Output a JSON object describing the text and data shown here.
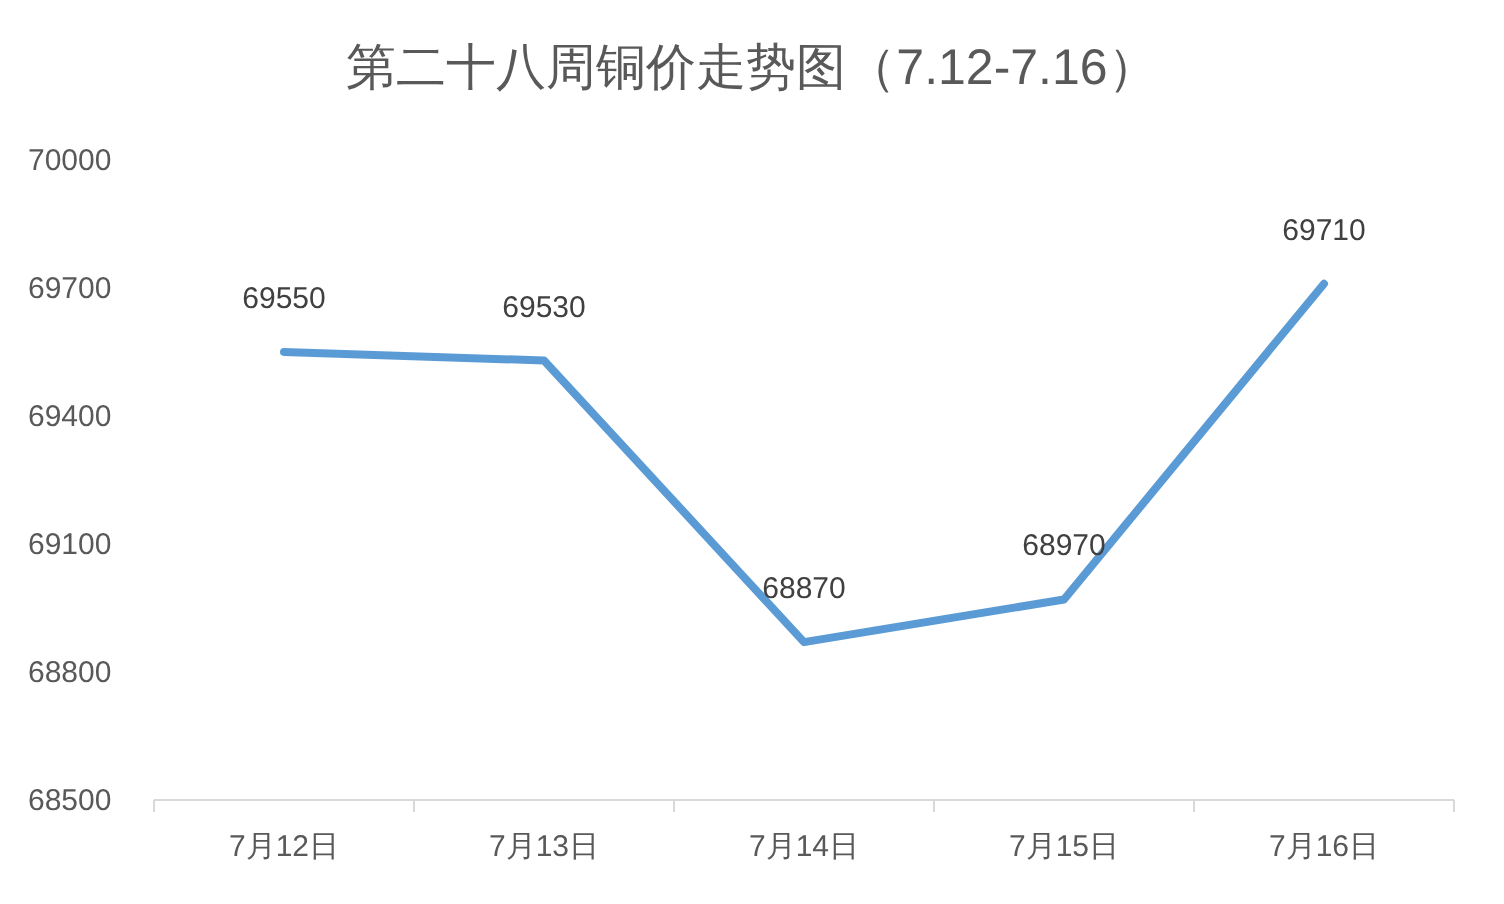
{
  "chart_data": {
    "type": "line",
    "title": "第二十八周铜价走势图（7.12-7.16）",
    "categories": [
      "7月12日",
      "7月13日",
      "7月14日",
      "7月15日",
      "7月16日"
    ],
    "series": [
      {
        "color": "#5b9bd5",
        "values": [
          69550,
          69530,
          68870,
          68970,
          69710
        ]
      }
    ],
    "ylim": [
      68500,
      70000
    ],
    "yticks": [
      68500,
      68800,
      69100,
      69400,
      69700,
      70000
    ],
    "grid": false,
    "marker": "none",
    "line_style": "solid",
    "data_labels": true
  }
}
